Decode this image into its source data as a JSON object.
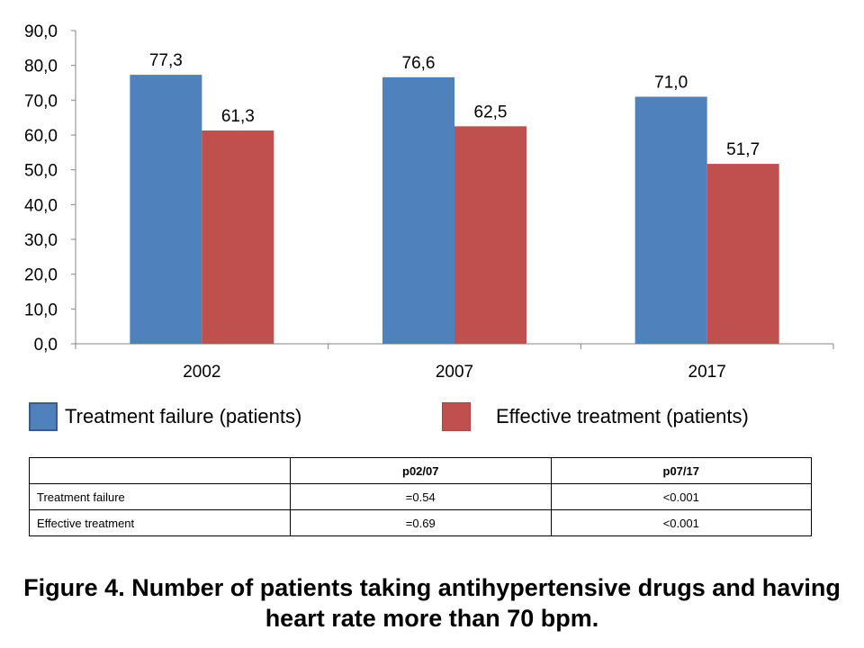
{
  "chart_data": {
    "type": "bar",
    "categories": [
      "2002",
      "2007",
      "2017"
    ],
    "series": [
      {
        "name": "Treatment failure (patients)",
        "values": [
          77.3,
          76.6,
          71.0
        ],
        "labels": [
          "77,3",
          "76,6",
          "71,0"
        ],
        "color": "#4F81BD"
      },
      {
        "name": "Effective treatment (patients)",
        "values": [
          61.3,
          62.5,
          51.7
        ],
        "labels": [
          "61,3",
          "62,5",
          "51,7"
        ],
        "color": "#C0504D"
      }
    ],
    "ylim": [
      0,
      90
    ],
    "yticks": [
      0,
      10,
      20,
      30,
      40,
      50,
      60,
      70,
      80,
      90
    ],
    "ytick_labels": [
      "0,0",
      "10,0",
      "20,0",
      "30,0",
      "40,0",
      "50,0",
      "60,0",
      "70,0",
      "80,0",
      "90,0"
    ],
    "grid": false,
    "legend_position": "bottom",
    "xlabel": "",
    "ylabel": ""
  },
  "table": {
    "headers": [
      "",
      "p02/07",
      "p07/17"
    ],
    "rows": [
      [
        "Treatment failure",
        "=0.54",
        "<0.001"
      ],
      [
        "Effective treatment",
        "=0.69",
        "<0.001"
      ]
    ]
  },
  "caption": "Figure 4. Number of patients taking antihypertensive drugs and having heart rate more than 70 bpm."
}
